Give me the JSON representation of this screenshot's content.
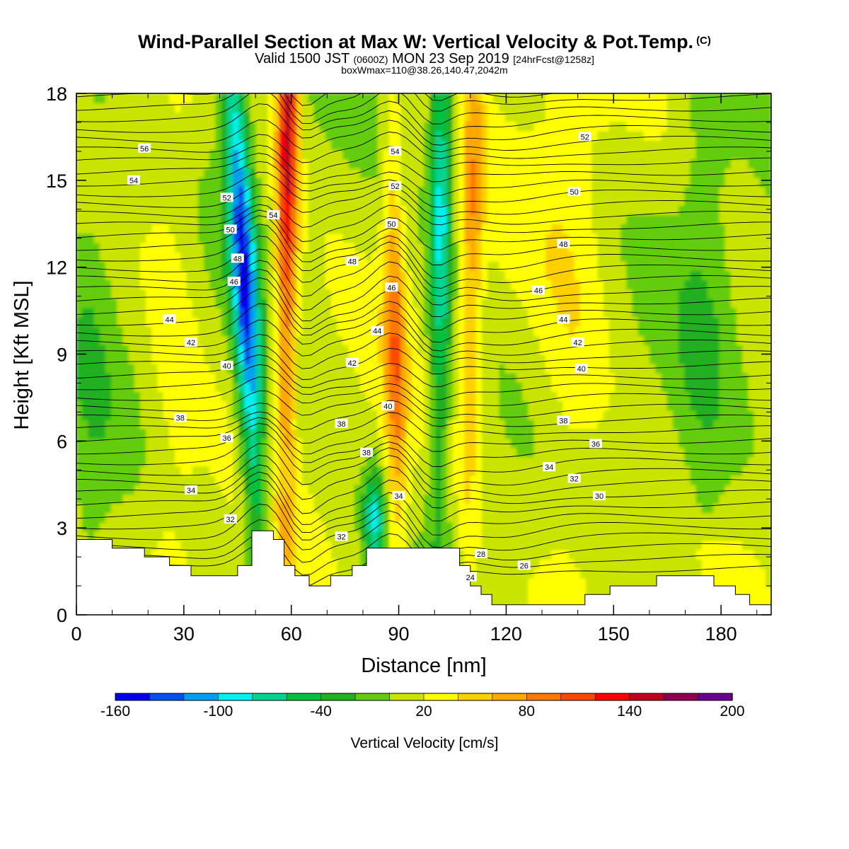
{
  "title": {
    "main": "Wind-Parallel Section at Max W: Vertical Velocity & Pot.Temp.",
    "copyright": "(C)",
    "valid_prefix": "Valid 1500 JST",
    "valid_zulu": "(0600Z)",
    "valid_date": "MON 23 Sep 2019",
    "forecast": "[24hrFcst@1258z]",
    "box": "boxWmax=110@38.26,140.47,2042m"
  },
  "chart_data": {
    "type": "heatmap",
    "xlabel": "Distance [nm]",
    "ylabel": "Height [Kft MSL]",
    "xlim": [
      0,
      194
    ],
    "ylim": [
      0,
      18
    ],
    "x_ticks": [
      0,
      30,
      60,
      90,
      120,
      150,
      180
    ],
    "y_ticks": [
      0,
      3,
      6,
      9,
      12,
      15,
      18
    ],
    "x_tick_labels": [
      "0",
      "30",
      "60",
      "90",
      "120",
      "150",
      "180"
    ],
    "y_tick_labels": [
      "0",
      "3",
      "6",
      "9",
      "12",
      "15",
      "18"
    ],
    "colorbar": {
      "label": "Vertical Velocity [cm/s]",
      "tick_labels": [
        "-160",
        "-100",
        "-40",
        "20",
        "80",
        "140",
        "200"
      ],
      "colors": [
        "#0000f0",
        "#0050f0",
        "#00a0f0",
        "#00f0f0",
        "#00d490",
        "#00c040",
        "#20b020",
        "#64cc10",
        "#c8e400",
        "#ffff00",
        "#ffd000",
        "#ffa800",
        "#ff7800",
        "#ff4800",
        "#ff0000",
        "#c00020",
        "#900050",
        "#6a0090"
      ]
    },
    "w_features": [
      {
        "kind": "downdraft",
        "x_base": 52,
        "x_top": 44,
        "peak_cm_s": -160
      },
      {
        "kind": "updraft",
        "x_base": 58,
        "x_top": 59,
        "peak_cm_s": 140
      },
      {
        "kind": "updraft",
        "x_base": 90,
        "x_top": 88,
        "peak_cm_s": 80
      },
      {
        "kind": "downdraft",
        "x_base": 101,
        "x_top": 102,
        "peak_cm_s": -100
      },
      {
        "kind": "updraft",
        "x_base": 109,
        "x_top": 111,
        "peak_cm_s": 60
      },
      {
        "kind": "downdraft",
        "x_base": 83,
        "x_top": 84,
        "peak_cm_s": -90
      }
    ],
    "terrain": [
      {
        "x": 0,
        "h": 2.6
      },
      {
        "x": 10,
        "h": 2.6
      },
      {
        "x": 10,
        "h": 2.3
      },
      {
        "x": 19,
        "h": 2.3
      },
      {
        "x": 19,
        "h": 2.0
      },
      {
        "x": 26,
        "h": 2.0
      },
      {
        "x": 26,
        "h": 1.7
      },
      {
        "x": 32,
        "h": 1.7
      },
      {
        "x": 32,
        "h": 1.35
      },
      {
        "x": 45,
        "h": 1.35
      },
      {
        "x": 45,
        "h": 1.7
      },
      {
        "x": 49,
        "h": 1.7
      },
      {
        "x": 49,
        "h": 2.9
      },
      {
        "x": 55,
        "h": 2.9
      },
      {
        "x": 55,
        "h": 2.6
      },
      {
        "x": 58,
        "h": 2.6
      },
      {
        "x": 58,
        "h": 1.7
      },
      {
        "x": 61,
        "h": 1.7
      },
      {
        "x": 61,
        "h": 1.35
      },
      {
        "x": 65,
        "h": 1.35
      },
      {
        "x": 65,
        "h": 1.0
      },
      {
        "x": 71,
        "h": 1.0
      },
      {
        "x": 71,
        "h": 1.35
      },
      {
        "x": 77,
        "h": 1.35
      },
      {
        "x": 77,
        "h": 1.7
      },
      {
        "x": 81,
        "h": 1.7
      },
      {
        "x": 81,
        "h": 2.3
      },
      {
        "x": 107,
        "h": 2.3
      },
      {
        "x": 107,
        "h": 1.7
      },
      {
        "x": 110,
        "h": 1.7
      },
      {
        "x": 110,
        "h": 1.0
      },
      {
        "x": 113,
        "h": 1.0
      },
      {
        "x": 113,
        "h": 0.7
      },
      {
        "x": 116,
        "h": 0.7
      },
      {
        "x": 116,
        "h": 0.35
      },
      {
        "x": 142,
        "h": 0.35
      },
      {
        "x": 142,
        "h": 0.7
      },
      {
        "x": 149,
        "h": 0.7
      },
      {
        "x": 149,
        "h": 1.0
      },
      {
        "x": 162,
        "h": 1.0
      },
      {
        "x": 162,
        "h": 1.35
      },
      {
        "x": 178,
        "h": 1.35
      },
      {
        "x": 178,
        "h": 1.0
      },
      {
        "x": 184,
        "h": 1.0
      },
      {
        "x": 184,
        "h": 0.7
      },
      {
        "x": 188,
        "h": 0.7
      },
      {
        "x": 188,
        "h": 0.35
      },
      {
        "x": 194,
        "h": 0.35
      }
    ],
    "theta_labels": [
      {
        "text": "56",
        "x": 19,
        "y": 16.1
      },
      {
        "text": "54",
        "x": 16,
        "y": 15.0
      },
      {
        "text": "52",
        "x": 42,
        "y": 14.4
      },
      {
        "text": "50",
        "x": 43,
        "y": 13.3
      },
      {
        "text": "48",
        "x": 45,
        "y": 12.3
      },
      {
        "text": "46",
        "x": 44,
        "y": 11.5
      },
      {
        "text": "54",
        "x": 55,
        "y": 13.8
      },
      {
        "text": "44",
        "x": 26,
        "y": 10.2
      },
      {
        "text": "42",
        "x": 32,
        "y": 9.4
      },
      {
        "text": "40",
        "x": 42,
        "y": 8.6
      },
      {
        "text": "38",
        "x": 29,
        "y": 6.8
      },
      {
        "text": "36",
        "x": 42,
        "y": 6.1
      },
      {
        "text": "34",
        "x": 32,
        "y": 4.3
      },
      {
        "text": "32",
        "x": 43,
        "y": 3.3
      },
      {
        "text": "54",
        "x": 89,
        "y": 16.0
      },
      {
        "text": "52",
        "x": 89,
        "y": 14.8
      },
      {
        "text": "50",
        "x": 88,
        "y": 13.5
      },
      {
        "text": "48",
        "x": 77,
        "y": 12.2
      },
      {
        "text": "46",
        "x": 88,
        "y": 11.3
      },
      {
        "text": "44",
        "x": 84,
        "y": 9.8
      },
      {
        "text": "42",
        "x": 77,
        "y": 8.7
      },
      {
        "text": "40",
        "x": 87,
        "y": 7.2
      },
      {
        "text": "38",
        "x": 74,
        "y": 6.6
      },
      {
        "text": "38",
        "x": 81,
        "y": 5.6
      },
      {
        "text": "34",
        "x": 90,
        "y": 4.1
      },
      {
        "text": "32",
        "x": 74,
        "y": 2.7
      },
      {
        "text": "28",
        "x": 113,
        "y": 2.1
      },
      {
        "text": "24",
        "x": 110,
        "y": 1.3
      },
      {
        "text": "26",
        "x": 125,
        "y": 1.7
      },
      {
        "text": "52",
        "x": 142,
        "y": 16.5
      },
      {
        "text": "50",
        "x": 139,
        "y": 14.6
      },
      {
        "text": "48",
        "x": 136,
        "y": 12.8
      },
      {
        "text": "46",
        "x": 129,
        "y": 11.2
      },
      {
        "text": "44",
        "x": 136,
        "y": 10.2
      },
      {
        "text": "42",
        "x": 140,
        "y": 9.4
      },
      {
        "text": "40",
        "x": 141,
        "y": 8.5
      },
      {
        "text": "38",
        "x": 136,
        "y": 6.7
      },
      {
        "text": "36",
        "x": 145,
        "y": 5.9
      },
      {
        "text": "34",
        "x": 132,
        "y": 5.1
      },
      {
        "text": "32",
        "x": 139,
        "y": 4.7
      },
      {
        "text": "30",
        "x": 146,
        "y": 4.1
      }
    ]
  }
}
